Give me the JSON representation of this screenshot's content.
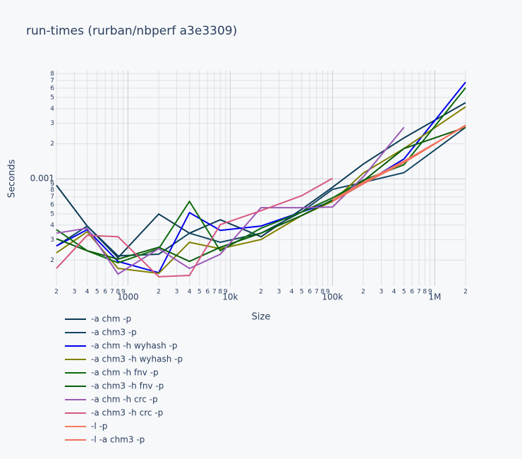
{
  "chart_data": {
    "type": "line",
    "title": "run-times (rurban/nbperf a3e3309)",
    "x_label": "Size",
    "y_label": "Seconds",
    "log_x": true,
    "log_y": true,
    "grid": true,
    "legend_position": "bottom",
    "x": [
      200,
      400,
      800,
      2000,
      4000,
      8000,
      20000,
      50000,
      100000,
      200000,
      500000,
      2000000
    ],
    "xlim": [
      200,
      2000000
    ],
    "xticks": [
      {
        "value": 200,
        "label": "2"
      },
      {
        "value": 300,
        "label": "3"
      },
      {
        "value": 400,
        "label": "4"
      },
      {
        "value": 500,
        "label": "5"
      },
      {
        "value": 600,
        "label": "6"
      },
      {
        "value": 700,
        "label": "7"
      },
      {
        "value": 800,
        "label": "8"
      },
      {
        "value": 900,
        "label": "9"
      },
      {
        "value": 1000,
        "label": "1000"
      },
      {
        "value": 2000,
        "label": "2"
      },
      {
        "value": 3000,
        "label": "3"
      },
      {
        "value": 4000,
        "label": "4"
      },
      {
        "value": 5000,
        "label": "5"
      },
      {
        "value": 6000,
        "label": "6"
      },
      {
        "value": 7000,
        "label": "7"
      },
      {
        "value": 8000,
        "label": "8"
      },
      {
        "value": 9000,
        "label": "9"
      },
      {
        "value": 10000,
        "label": "10k"
      },
      {
        "value": 20000,
        "label": "2"
      },
      {
        "value": 30000,
        "label": "3"
      },
      {
        "value": 40000,
        "label": "4"
      },
      {
        "value": 50000,
        "label": "5"
      },
      {
        "value": 60000,
        "label": "6"
      },
      {
        "value": 70000,
        "label": "7"
      },
      {
        "value": 80000,
        "label": "8"
      },
      {
        "value": 90000,
        "label": "9"
      },
      {
        "value": 100000,
        "label": "100k"
      },
      {
        "value": 200000,
        "label": "2"
      },
      {
        "value": 300000,
        "label": "3"
      },
      {
        "value": 400000,
        "label": "4"
      },
      {
        "value": 500000,
        "label": "5"
      },
      {
        "value": 600000,
        "label": "6"
      },
      {
        "value": 700000,
        "label": "7"
      },
      {
        "value": 800000,
        "label": "8"
      },
      {
        "value": 900000,
        "label": "9"
      },
      {
        "value": 1000000,
        "label": "1M"
      },
      {
        "value": 2000000,
        "label": "2"
      }
    ],
    "ylim": [
      0.00012,
      0.0085
    ],
    "yticks": [
      {
        "value": 0.0002,
        "label": "2"
      },
      {
        "value": 0.0003,
        "label": "3"
      },
      {
        "value": 0.0004,
        "label": "4"
      },
      {
        "value": 0.0005,
        "label": "5"
      },
      {
        "value": 0.0006,
        "label": "6"
      },
      {
        "value": 0.0007,
        "label": "7"
      },
      {
        "value": 0.0008,
        "label": "8"
      },
      {
        "value": 0.0009,
        "label": "9"
      },
      0.001,
      {
        "value": 0.002,
        "label": "2"
      },
      {
        "value": 0.003,
        "label": "3"
      },
      {
        "value": 0.004,
        "label": "4"
      },
      {
        "value": 0.005,
        "label": "5"
      },
      {
        "value": 0.006,
        "label": "6"
      },
      {
        "value": 0.007,
        "label": "7"
      },
      {
        "value": 0.008,
        "label": "8"
      }
    ],
    "series": [
      {
        "name": "-a chm -p",
        "color": "#0d3b55",
        "values": [
          0.00088,
          0.000393,
          0.00021,
          0.000498,
          0.000341,
          0.000445,
          0.000318,
          0.000548,
          0.000846,
          0.00134,
          0.00225,
          0.00451
        ]
      },
      {
        "name": "-a chm3 -p",
        "color": "#124662",
        "values": [
          0.000265,
          0.000393,
          0.000218,
          0.000225,
          0.000341,
          0.000285,
          0.000341,
          0.000519,
          0.000811,
          0.000933,
          0.00113,
          0.00277
        ]
      },
      {
        "name": "-a chm -h wyhash -p",
        "color": "#0000ee",
        "values": [
          0.000265,
          0.000366,
          0.000195,
          0.000156,
          0.000512,
          0.000361,
          0.000393,
          0.000519,
          0.00064,
          0.000907,
          0.00148,
          0.00676
        ]
      },
      {
        "name": "-a chm3 -h wyhash -p",
        "color": "#808000",
        "values": [
          0.000231,
          0.000351,
          0.00017,
          0.000154,
          0.000285,
          0.000251,
          0.000301,
          0.000484,
          0.00064,
          0.00112,
          0.00182,
          0.00415
        ]
      },
      {
        "name": "-a chm -h fnv -p",
        "color": "#0e6b0e",
        "values": [
          0.000366,
          0.000241,
          0.00019,
          0.000251,
          0.00064,
          0.000241,
          0.000376,
          0.000519,
          0.000686,
          0.000972,
          0.00132,
          0.00605
        ]
      },
      {
        "name": "-a chm3 -h fnv -p",
        "color": "#0a5c0a",
        "values": [
          0.000305,
          0.000241,
          0.000204,
          0.000258,
          0.000195,
          0.000258,
          0.000341,
          0.000484,
          0.000658,
          0.000959,
          0.00182,
          0.00277
        ]
      },
      {
        "name": "-a chm -h crc -p",
        "color": "#9b59b6",
        "values": [
          0.000341,
          0.000376,
          0.000152,
          0.000251,
          0.00017,
          0.000225,
          0.000565,
          0.000565,
          0.000573,
          0.00104,
          0.00277,
          null
        ]
      },
      {
        "name": "-a chm3 -h crc -p",
        "color": "#d6587f",
        "values": [
          0.00017,
          0.000327,
          0.000318,
          0.000144,
          0.000148,
          0.000404,
          0.000533,
          0.000716,
          0.00101,
          null,
          null,
          null
        ]
      },
      {
        "name": "-l -p",
        "color": "#f47a60",
        "values": [
          null,
          null,
          null,
          null,
          null,
          null,
          null,
          null,
          0.000658,
          0.000933,
          0.00142,
          0.00285
        ]
      },
      {
        "name": "-l -a chm3 -p",
        "color": "#f0705c",
        "values": [
          null,
          null,
          null,
          null,
          null,
          null,
          null,
          null,
          0.00064,
          0.000907,
          0.00138,
          0.00289
        ]
      }
    ]
  }
}
